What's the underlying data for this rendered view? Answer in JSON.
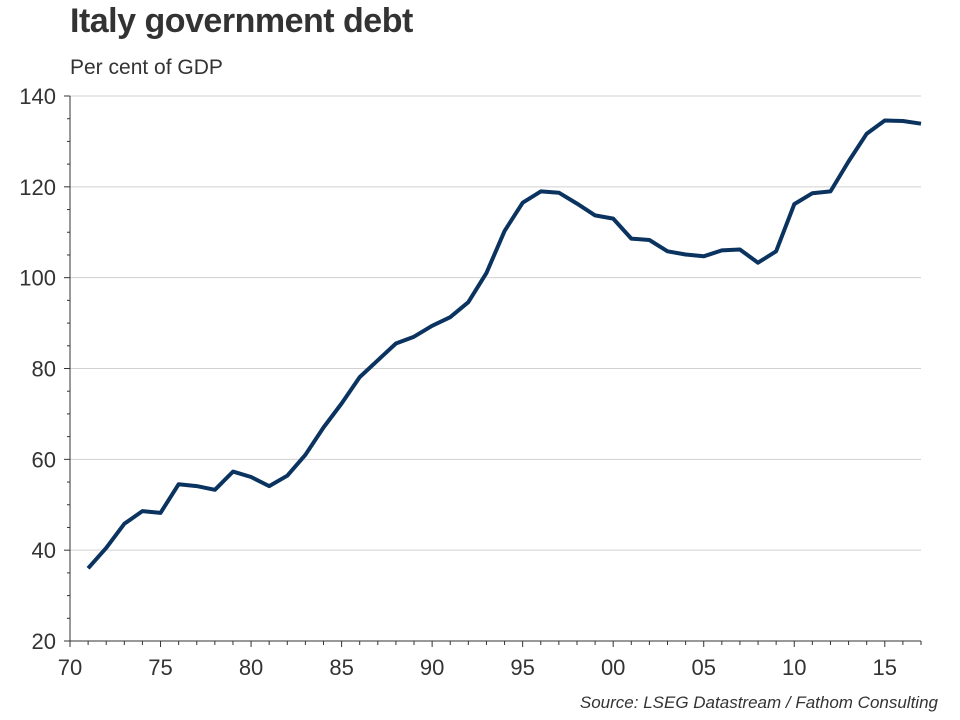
{
  "colors": {
    "line": "#0b3360",
    "grid": "#d0d0d0",
    "axis": "#333333",
    "text": "#333333"
  },
  "chart_data": {
    "type": "line",
    "title": "Italy government debt",
    "subtitle": "Per cent of GDP",
    "source": "Source: LSEG Datastream / Fathom Consulting",
    "xlabel": "",
    "ylabel": "",
    "xlim": [
      1970,
      2017
    ],
    "ylim": [
      20,
      140
    ],
    "grid": true,
    "legend": "none",
    "x_ticks": [
      {
        "value": 1970,
        "label": "70"
      },
      {
        "value": 1975,
        "label": "75"
      },
      {
        "value": 1980,
        "label": "80"
      },
      {
        "value": 1985,
        "label": "85"
      },
      {
        "value": 1990,
        "label": "90"
      },
      {
        "value": 1995,
        "label": "95"
      },
      {
        "value": 2000,
        "label": "00"
      },
      {
        "value": 2005,
        "label": "05"
      },
      {
        "value": 2010,
        "label": "10"
      },
      {
        "value": 2015,
        "label": "15"
      }
    ],
    "y_ticks": [
      {
        "value": 20,
        "label": "20"
      },
      {
        "value": 40,
        "label": "40"
      },
      {
        "value": 60,
        "label": "60"
      },
      {
        "value": 80,
        "label": "80"
      },
      {
        "value": 100,
        "label": "100"
      },
      {
        "value": 120,
        "label": "120"
      },
      {
        "value": 140,
        "label": "140"
      }
    ],
    "series": [
      {
        "x": [
          1971,
          1972,
          1973,
          1974,
          1975,
          1976,
          1977,
          1978,
          1979,
          1980,
          1981,
          1982,
          1983,
          1984,
          1985,
          1986,
          1987,
          1988,
          1989,
          1990,
          1991,
          1992,
          1993,
          1994,
          1995,
          1996,
          1997,
          1998,
          1999,
          2000,
          2001,
          2002,
          2003,
          2004,
          2005,
          2006,
          2007,
          2008,
          2009,
          2010,
          2011,
          2012,
          2013,
          2014,
          2015,
          2016,
          2017
        ],
        "values": [
          36.0,
          40.5,
          45.8,
          48.6,
          48.2,
          54.5,
          54.1,
          53.3,
          57.3,
          56.1,
          54.1,
          56.4,
          61.0,
          67.0,
          72.3,
          78.1,
          81.8,
          85.5,
          87.0,
          89.4,
          91.3,
          94.6,
          101.0,
          110.3,
          116.5,
          119.0,
          118.7,
          116.3,
          113.7,
          113.0,
          108.6,
          108.3,
          105.8,
          105.1,
          104.7,
          106.0,
          106.2,
          103.3,
          105.8,
          116.2,
          118.6,
          119.0,
          125.6,
          131.7,
          134.6,
          134.5,
          133.9
        ]
      }
    ]
  }
}
